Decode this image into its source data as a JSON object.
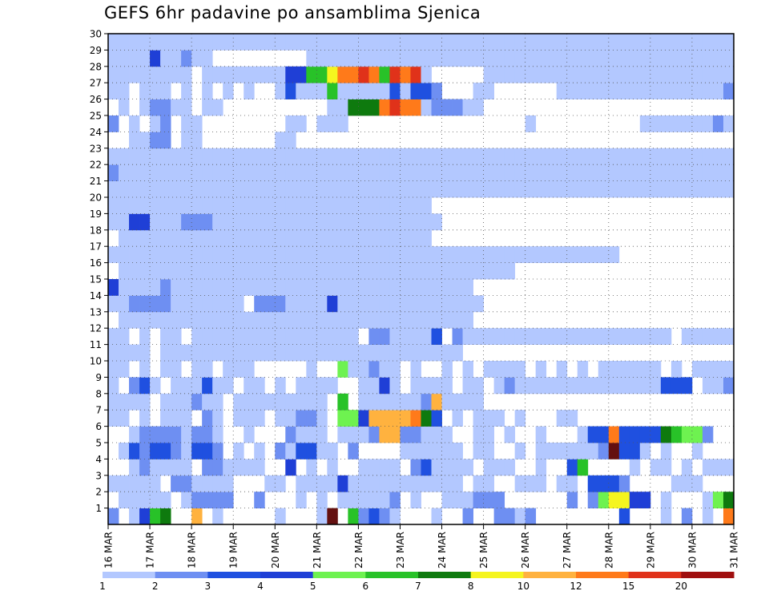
{
  "chart_data": {
    "type": "heatmap",
    "title": "GEFS 6hr padavine po ansamblima Sjenica",
    "xlabel": "",
    "ylabel": "",
    "y_categories": [
      "1",
      "2",
      "3",
      "4",
      "5",
      "6",
      "7",
      "8",
      "9",
      "10",
      "11",
      "12",
      "13",
      "14",
      "15",
      "16",
      "17",
      "18",
      "19",
      "20",
      "21",
      "22",
      "23",
      "24",
      "25",
      "26",
      "27",
      "28",
      "29",
      "30"
    ],
    "x_tick_labels": [
      "16 MAR",
      "17 MAR",
      "18 MAR",
      "19 MAR",
      "20 MAR",
      "21 MAR",
      "22 MAR",
      "23 MAR",
      "24 MAR",
      "25 MAR",
      "26 MAR",
      "27 MAR",
      "28 MAR",
      "29 MAR",
      "30 MAR",
      "31 MAR"
    ],
    "x_steps_per_day": 4,
    "x_total_steps": 60,
    "colorbar_levels": [
      "1",
      "2",
      "3",
      "4",
      "5",
      "6",
      "7",
      "8",
      "10",
      "12",
      "15",
      "20"
    ],
    "level_colors": [
      "#b3c8ff",
      "#6e8ff2",
      "#1f50e0",
      "#1f3fd6",
      "#6ef250",
      "#28c228",
      "#0e7a0e",
      "#f5f51f",
      "#ffb23f",
      "#ff7a1a",
      "#e0321a",
      "#a00f0f",
      "#641010"
    ],
    "cells": [
      [
        1,
        "0,1;2;3,3;4,5;5,6;8,8;10;16;20;21,22,5;23,5;24,1;25,2;26,1;27;31;34,1;37,1;38,1;39;40,1;49,2;53;55,1;57;59,9"
      ],
      [
        2,
        "1;2;3;4;5;7;8,1;9,1;10,1;11,1;14,1;18;20;22;23;24;25;26;27,1;29;32;33;34;35,1;36,1;37,1;44,1;46,1;47,4;48,7;49,7;50,3;51,3;53;57;58,4;59,6"
      ],
      [
        3,
        "0;1;2;3;4;6,1;7,1;8;9;10;11;15;16;18;19;20;21;22,3;23;24;25;26;27;28;29;30;31;32;33;35;36;39;40;41;43;44;46,2;47,2;48,2;49,1;54;55;56"
      ],
      [
        4,
        "2;3,1;4;5;6;7;9,1;10,1;11;12;13;14;17,3;19;21;24;25;26;27;29,1;30,2;31;32;33;34;36;37;38;41;44,2;45,5;50;52;53;55;57;58;59"
      ],
      [
        5,
        "1;2,2;3,1;4,2;5,2;6,1;7;8,2;9,2;10,1;12;14;16,1;17;18,2;19,2;20;21;23,1;28;29;30;31;32;33;35;36;39;41;42;43;44;45;46;47,1;48,12;49,2;50,2;51;53;56"
      ],
      [
        6,
        "2;3,1;4,1;5,1;6,1;7;8,1;9,1;10;13;17,1;18;19;20;22;23;24;25,1;26,8;27,8;28,1;29,1;30;31;32;35;36;38;41;45;46,2;47,2;48,9;49,2;50,2;51,2;52,2;53,6;54,5;55,4;56,4;57,1;60,1"
      ],
      [
        7,
        "0;1;3;5;6;7;9,1;10;12;13;14;16;17;18,1;19,1;20;22,4;23,4;24,3;25,8;26,8;27,8;28,8;29,9;30,6;31,2;33;35;36;37;39;43;44"
      ],
      [
        8,
        "0;1;2;3;5;6;7;8,1;9;10;12;13;14;15;16;17;18;19;20;22,5;24;25;26;27;28;29;30,1;31,8;32;33;34;35"
      ],
      [
        9,
        "0;2,1;3,2;4;6;7;8;9,2;10;11;13;14;16;18;19;20;21;24;25;26,3;27;29;30;31;32;34;35;37;38,1;39;40;41;42;43;44;45;46;47;48;49;50;51;52;53,2;54,2;55,2;57;58;59,1"
      ],
      [
        10,
        "0;1;3;5;6;8;9;11;12;13;19;22,4;23;24;25,1;26;27;29;32;34;36;37;38;39;41;43;45;47;48;49;50;51;52;54;56;57;58;59;60;61;62;63"
      ],
      [
        11,
        "0;1;2;3;5;6;7;8;9;10;11;12;13;14;15;16;17;18;19;20;21;22;23;24;25;26;27;28;29;30;31;32;33"
      ],
      [
        12,
        "0;1;3;5;6;8;9;10;11;12;13;14;15;16;17;18;19;20;21;22;23;25,1;26,1;27;28;29;30;31,2;33,1;34;35;36;37;38;39;40;41;42;43;44;45;46;47;48;49;50;51;52;53;55;56;57;58;59;60;61;62;63;64;65;66;68;70;72;73;74;75;76;77;78;79;80;81;82;83;84;85"
      ],
      [
        13,
        "1;2;3;4;5;6;7;8;9;10;11;12;13;14;15;16;17;18;19;20;21;22;23;24;25;26;27;28;29;30;31;32;33;34"
      ],
      [
        14,
        "0;1;2,1;3,1;4,1;5,1;6;7;8;9;10;11;12;14,1;15,1;16,1;17;18;19;20;21,3;22;23;24;25;26;27;28;29;30;31;32;33;34;35"
      ],
      [
        15,
        "0,3;1;2;3;4;5,1;6;7;8;9;10;11;12;13;14;15;16;17;18;19;20;21;22;23;24;25;26;27;28;29;30;31;32;33;34"
      ],
      [
        16,
        "1;2;3;4;5;6;7;8;9;10;11;12;13;14;15;16;17;18;19;20;21;22;23;24;25;26;27;28;29;30;31;32;33;34;35;36;37;38"
      ],
      [
        17,
        "0;1;2;3;4;5;6;7;8;9;10;11;12;13;14;15;16;17;18;19;20;21;22;23;24;25;26;27;28;29;30;31;32;33;34;35;36;37;38;39;40;41;42;43;44;45;46;47;48"
      ],
      [
        18,
        "1;2;3;4;5;6;7;8;9;10;11;12;13;14;15;16;17;18;19;20;21;22;23;24;25;26;27;28;29;30"
      ],
      [
        19,
        "0;1;2,3;3,3;4;5;6;7,1;8,1;9,1;10;11;12;13;14;15;16;17;18;19;20;21;22;23;24;25;26;27;28;29;30;31"
      ],
      [
        20,
        "0;1;2;3;4;5;6;7;8;9;10;11;12;13;14;15;16;17;18;19;20;21;22;23;24;25;26;27;28;29;30"
      ],
      [
        21,
        "0;1;2;3;4;5;6;7;8;9;10;11;12;13;14;15;16;17;18;19;20;21;22;23;24;25;26;27;28;29;30;31;32;33;34;35;36;37;38;39;40;41;42;43;44;45;46;47;48;49;50;51;52;53;54;55;56;57;58;59"
      ],
      [
        22,
        "0,1;1;2;3;4;5;6;7;8;9;10;11;12;13;14;15;16;17;18;19;20;21;22;23;24;25;26;27;28;29;30;31;32;33;34;35;36;37;38;39;40;41;42;43;44;45;46;47;48;49;50;51;52;53;54;55;56;57;58;59"
      ],
      [
        23,
        "0;1;2;3;4;5;6;7;8;9;10;11;12;13;14;15;16;17;18;19;20;21;22;23;24;25;26;27;28;29;30;31;32;33;34;35;36;37;38;39;40;41;42;43;44;45;46;47;48;49;50;51;52;53;54;55;56;57;58;59"
      ],
      [
        24,
        "2;3;4,1;5,1;7;8;16;17"
      ],
      [
        25,
        "0,1;2;4;5,1;7;8;17;18;20;21;22;40;51;52;53;54;55;56;57;58,1;59"
      ],
      [
        26,
        "1;3;4,1;5,1;6;7;9;10;21;22;23,6;24,6;25,6;26,9;27,10;28,9;29,9;30;31,1;32,1;33,1;34;35"
      ],
      [
        27,
        "0;1;3;4;5;7;9;11;13;16;17,2;18;19;20;21,5;22;23;24;25;26;27,2;28;29,2;30,2;31,1;35;36;43;44;45;46;47;48;49;50;51;52;53;54;55;56;57;58;59,1"
      ],
      [
        28,
        "0;1;2;3;4;5;6;7;9;10;11;12;13;14;15;16;17,3;18,3;19,5;20,5;21,7;22,9;23,9;24,10;25,9;26,5;27,10;28,9;29,10;30;36;37;38;39;40;41;42;43;44;45;46;47;48;49;50;51;52;53;54;55;56;57;58;59"
      ],
      [
        29,
        "0;1;2;3;4,3;5;6;7,1;8;9;19;20;21;22;23;24;25;26;27;28;29;30;31;32;33;34;35;36;37;38;39;40;41;42;43;44;45;46;47;48;49;50;51;52;53;54;55;56;57;58;59"
      ],
      [
        30,
        "0;1;2;3;4;5;6;7;8;9;10;11;12;13;14;15;16;17;18;19;20;21;22;23;24;25;26;27;28;29;30;31;32;33;34;35;36;37;38;39;40;41;42;43;44;45;46;47;48;49;50;51;52;53;54;55;56;57;58;59"
      ]
    ]
  }
}
